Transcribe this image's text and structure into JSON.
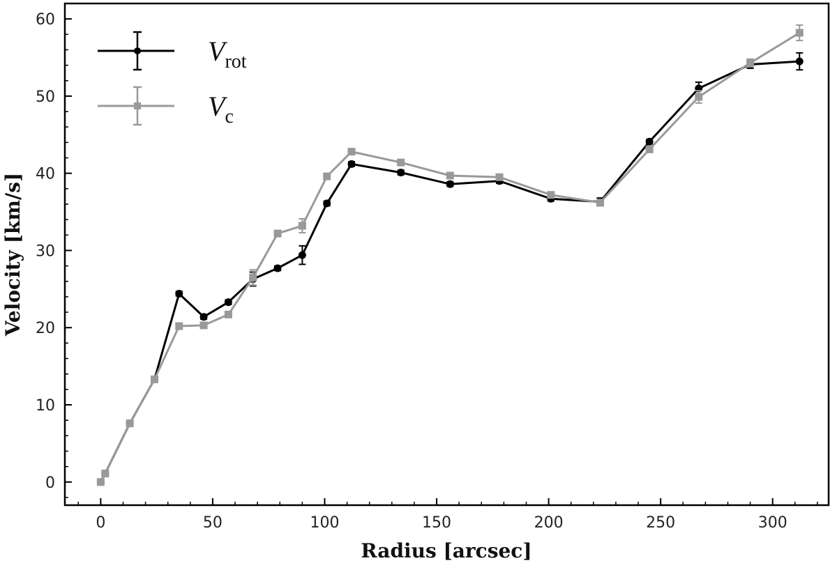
{
  "chart_data": {
    "type": "line",
    "x_label": "Radius [arcsec]",
    "y_label": "Velocity [km/s]",
    "x": [
      0,
      2,
      13,
      24,
      35,
      46,
      57,
      68,
      79,
      90,
      101,
      112,
      134,
      156,
      178,
      201,
      223,
      245,
      267,
      290,
      312
    ],
    "series": [
      {
        "name": "V",
        "subscript": "rot",
        "color": "#000000",
        "marker": "circle",
        "values": [
          0,
          1.1,
          7.6,
          13.3,
          24.4,
          21.4,
          23.3,
          26.3,
          27.7,
          29.4,
          36.1,
          41.2,
          40.1,
          38.6,
          39.0,
          36.7,
          36.3,
          44.1,
          51.0,
          54.1,
          54.5
        ],
        "errors": [
          0.3,
          0.3,
          0.3,
          0.3,
          0.3,
          0.3,
          0.3,
          0.9,
          0.3,
          1.2,
          0.3,
          0.3,
          0.3,
          0.3,
          0.3,
          0.3,
          0.5,
          0.3,
          0.8,
          0.5,
          1.1
        ]
      },
      {
        "name": "V",
        "subscript": "c",
        "color": "#999999",
        "marker": "square",
        "values": [
          0,
          1.1,
          7.6,
          13.3,
          20.2,
          20.3,
          21.7,
          26.5,
          32.2,
          33.2,
          39.6,
          42.8,
          41.4,
          39.7,
          39.5,
          37.2,
          36.2,
          43.1,
          49.9,
          54.3,
          58.2
        ],
        "errors": [
          0.3,
          0.3,
          0.3,
          0.3,
          0.3,
          0.3,
          0.3,
          1.0,
          0.3,
          0.9,
          0.3,
          0.3,
          0.3,
          0.3,
          0.3,
          0.3,
          0.3,
          0.3,
          0.8,
          0.5,
          1.0
        ]
      }
    ],
    "xlim": [
      -16,
      325
    ],
    "ylim": [
      -3,
      62
    ],
    "xticks": [
      0,
      50,
      100,
      150,
      200,
      250,
      300
    ],
    "yticks": [
      0,
      10,
      20,
      30,
      40,
      50,
      60
    ],
    "legend": "upper-left",
    "grid": false
  }
}
